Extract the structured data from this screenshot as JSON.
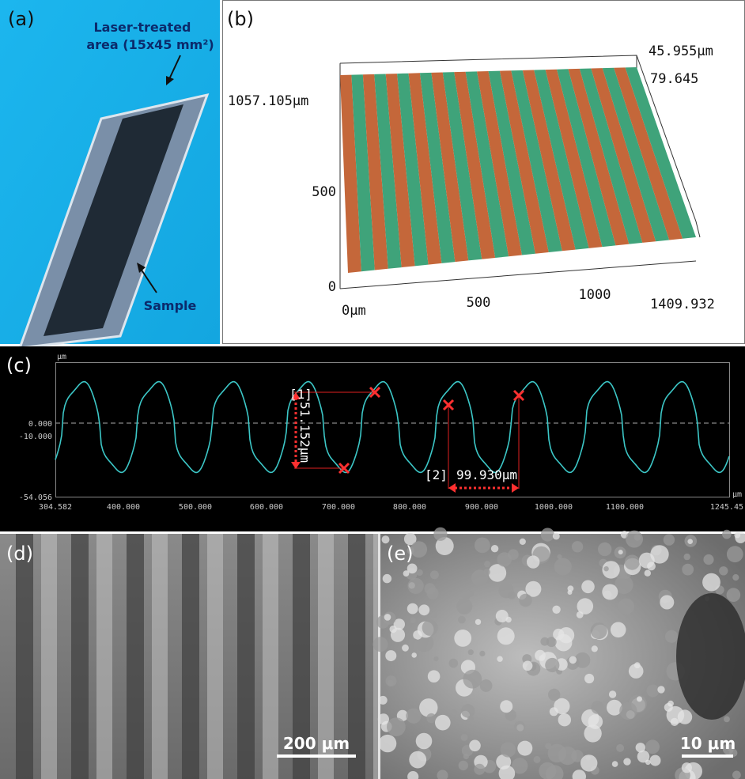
{
  "panels": {
    "a": {
      "label": "(a)",
      "annotations": [
        "Laser-treated",
        "area (15x45 mm²)",
        "Sample"
      ]
    },
    "b": {
      "label": "(b)",
      "z_max": "45.955μm",
      "z_other": "79.645",
      "y_max": "1057.105μm",
      "y_mid": "500",
      "y_zero": "0",
      "x_zero": "0μm",
      "x_ticks": [
        "500",
        "1000"
      ],
      "x_max": "1409.932"
    },
    "c": {
      "label": "(c)",
      "y_unit": "μm",
      "y_ticks": [
        "0.000",
        "-10.000",
        "-54.056"
      ],
      "x_unit": "μm",
      "x_ticks": [
        "304.582",
        "400.000",
        "500.000",
        "600.000",
        "700.000",
        "800.000",
        "900.000",
        "1000.000",
        "1100.000",
        "1245.45"
      ],
      "annotations": [
        {
          "marker": "[1]",
          "text": "51.152μm"
        },
        {
          "marker": "[2]",
          "text": "99.930μm"
        }
      ]
    },
    "d": {
      "label": "(d)",
      "scale_bar": "200 μm"
    },
    "e": {
      "label": "(e)",
      "scale_bar": "10 μm"
    }
  }
}
